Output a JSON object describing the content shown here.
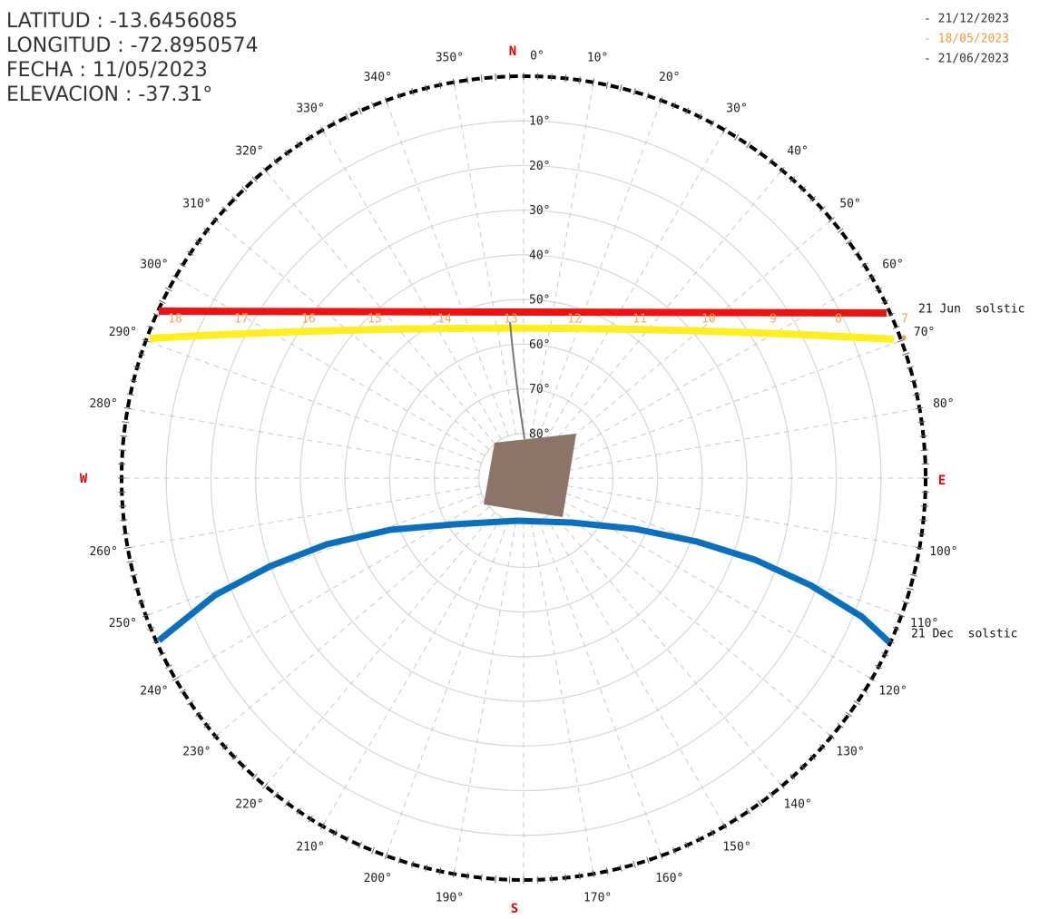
{
  "info": [
    "LATITUD : -13.6456085",
    "LONGITUD : -72.8950574",
    "FECHA : 11/05/2023",
    "ELEVACION : -37.31°"
  ],
  "legend": [
    "- 21/12/2023",
    "- 18/05/2023",
    "- 21/06/2023"
  ],
  "compass": [
    "N",
    "E",
    "S",
    "W"
  ],
  "azimuth_labels": [
    "0°",
    "10°",
    "20°",
    "30°",
    "40°",
    "50°",
    "60°",
    "70°",
    "80°",
    "100°",
    "110°",
    "120°",
    "130°",
    "140°",
    "150°",
    "160°",
    "170°",
    "190°",
    "200°",
    "210°",
    "220°",
    "230°",
    "240°",
    "250°",
    "260°",
    "280°",
    "290°",
    "300°",
    "310°",
    "320°",
    "330°",
    "340°",
    "350°"
  ],
  "elevation_labels": [
    "10°",
    "20°",
    "30°",
    "40°",
    "50°",
    "60°",
    "70°",
    "80°"
  ],
  "hour_labels": [
    "18",
    "17",
    "16",
    "15",
    "14",
    "13",
    "12",
    "11",
    "10",
    "9",
    "8",
    "7"
  ],
  "solstice_labels": [
    "21 Jun  solstic",
    "21 Dec  solstic"
  ]
}
